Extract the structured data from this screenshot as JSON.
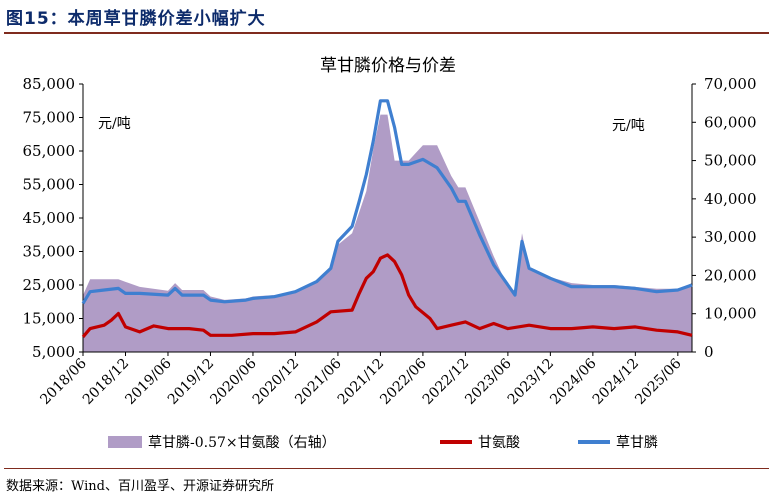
{
  "header": {
    "figure_title": "图15：本周草甘膦价差小幅扩大"
  },
  "footer": {
    "source": "数据来源：Wind、百川盈孚、开源证券研究所"
  },
  "colors": {
    "spread_fill": "#b09cc6",
    "glycine": "#c00000",
    "glyphosate": "#3f7fd0",
    "rule": "#7f2b1e",
    "title": "#0d2b6b"
  },
  "chart_data": {
    "type": "line",
    "title": "草甘膦价格与价差",
    "left_axis_unit": "元/吨",
    "right_axis_unit": "元/吨",
    "left_ylim": [
      5000,
      85000
    ],
    "right_ylim": [
      0,
      70000
    ],
    "left_ticks": [
      "85,000",
      "75,000",
      "65,000",
      "55,000",
      "45,000",
      "35,000",
      "25,000",
      "15,000",
      "5,000"
    ],
    "right_ticks": [
      "70,000",
      "60,000",
      "50,000",
      "40,000",
      "30,000",
      "20,000",
      "10,000",
      "0"
    ],
    "x_ticks": [
      "2018/06",
      "2018/12",
      "2019/06",
      "2019/12",
      "2020/06",
      "2020/12",
      "2021/06",
      "2021/12",
      "2022/06",
      "2022/12",
      "2023/06",
      "2023/12",
      "2024/06",
      "2024/12",
      "2025/06"
    ],
    "x_range": [
      "2018/06",
      "2025/08"
    ],
    "grid": false,
    "legend_position": "bottom",
    "series": [
      {
        "name": "草甘膦-0.57×甘氨酸（右轴）",
        "axis": "right",
        "kind": "area",
        "points": [
          [
            "2018/06",
            14800
          ],
          [
            "2018/07",
            19000
          ],
          [
            "2018/11",
            19000
          ],
          [
            "2018/12",
            18300
          ],
          [
            "2019/02",
            17000
          ],
          [
            "2019/06",
            16000
          ],
          [
            "2019/07",
            18000
          ],
          [
            "2019/08",
            16200
          ],
          [
            "2019/11",
            16200
          ],
          [
            "2019/12",
            14500
          ],
          [
            "2020/02",
            13600
          ],
          [
            "2020/05",
            14000
          ],
          [
            "2020/06",
            14500
          ],
          [
            "2020/10",
            15000
          ],
          [
            "2020/12",
            16000
          ],
          [
            "2021/03",
            18200
          ],
          [
            "2021/05",
            22000
          ],
          [
            "2021/06",
            28000
          ],
          [
            "2021/08",
            31000
          ],
          [
            "2021/10",
            42000
          ],
          [
            "2021/11",
            53000
          ],
          [
            "2021/12",
            62000
          ],
          [
            "2022/01",
            62000
          ],
          [
            "2022/02",
            50000
          ],
          [
            "2022/04",
            50000
          ],
          [
            "2022/06",
            54000
          ],
          [
            "2022/08",
            54000
          ],
          [
            "2022/10",
            46000
          ],
          [
            "2022/11",
            43000
          ],
          [
            "2022/12",
            43000
          ],
          [
            "2023/02",
            34000
          ],
          [
            "2023/04",
            25000
          ],
          [
            "2023/06",
            17000
          ],
          [
            "2023/07",
            16000
          ],
          [
            "2023/08",
            31000
          ],
          [
            "2023/09",
            22000
          ],
          [
            "2023/12",
            19500
          ],
          [
            "2024/03",
            18000
          ],
          [
            "2024/06",
            17500
          ],
          [
            "2024/09",
            17500
          ],
          [
            "2024/12",
            17000
          ],
          [
            "2025/03",
            16500
          ],
          [
            "2025/06",
            16500
          ],
          [
            "2025/08",
            18000
          ]
        ]
      },
      {
        "name": "甘氨酸",
        "axis": "left",
        "kind": "line",
        "points": [
          [
            "2018/06",
            9500
          ],
          [
            "2018/07",
            12000
          ],
          [
            "2018/09",
            13000
          ],
          [
            "2018/10",
            14500
          ],
          [
            "2018/11",
            16500
          ],
          [
            "2018/12",
            12500
          ],
          [
            "2019/02",
            11000
          ],
          [
            "2019/04",
            12800
          ],
          [
            "2019/06",
            12000
          ],
          [
            "2019/09",
            12000
          ],
          [
            "2019/11",
            11500
          ],
          [
            "2019/12",
            10000
          ],
          [
            "2020/03",
            10000
          ],
          [
            "2020/06",
            10500
          ],
          [
            "2020/09",
            10500
          ],
          [
            "2020/12",
            11000
          ],
          [
            "2021/03",
            14000
          ],
          [
            "2021/05",
            17000
          ],
          [
            "2021/08",
            17500
          ],
          [
            "2021/09",
            22500
          ],
          [
            "2021/10",
            27000
          ],
          [
            "2021/11",
            29000
          ],
          [
            "2021/12",
            33000
          ],
          [
            "2022/01",
            34000
          ],
          [
            "2022/02",
            32000
          ],
          [
            "2022/03",
            28000
          ],
          [
            "2022/04",
            22000
          ],
          [
            "2022/05",
            18500
          ],
          [
            "2022/07",
            15000
          ],
          [
            "2022/08",
            12000
          ],
          [
            "2022/10",
            13000
          ],
          [
            "2022/12",
            14000
          ],
          [
            "2023/02",
            12000
          ],
          [
            "2023/04",
            13500
          ],
          [
            "2023/06",
            12000
          ],
          [
            "2023/09",
            13000
          ],
          [
            "2023/12",
            12000
          ],
          [
            "2024/03",
            12000
          ],
          [
            "2024/06",
            12500
          ],
          [
            "2024/09",
            12000
          ],
          [
            "2024/12",
            12500
          ],
          [
            "2025/03",
            11500
          ],
          [
            "2025/06",
            11000
          ],
          [
            "2025/08",
            10000
          ]
        ]
      },
      {
        "name": "草甘膦",
        "axis": "left",
        "kind": "line",
        "points": [
          [
            "2018/06",
            19500
          ],
          [
            "2018/07",
            23000
          ],
          [
            "2018/09",
            23500
          ],
          [
            "2018/11",
            24000
          ],
          [
            "2018/12",
            22500
          ],
          [
            "2019/02",
            22500
          ],
          [
            "2019/06",
            22000
          ],
          [
            "2019/07",
            24000
          ],
          [
            "2019/08",
            22000
          ],
          [
            "2019/11",
            22000
          ],
          [
            "2019/12",
            20500
          ],
          [
            "2020/02",
            20000
          ],
          [
            "2020/05",
            20500
          ],
          [
            "2020/06",
            21000
          ],
          [
            "2020/09",
            21500
          ],
          [
            "2020/12",
            23000
          ],
          [
            "2021/03",
            26000
          ],
          [
            "2021/05",
            30000
          ],
          [
            "2021/06",
            38000
          ],
          [
            "2021/08",
            42500
          ],
          [
            "2021/09",
            50000
          ],
          [
            "2021/10",
            58000
          ],
          [
            "2021/11",
            68000
          ],
          [
            "2021/12",
            80000
          ],
          [
            "2022/01",
            80000
          ],
          [
            "2022/02",
            72000
          ],
          [
            "2022/03",
            61000
          ],
          [
            "2022/04",
            61000
          ],
          [
            "2022/06",
            62500
          ],
          [
            "2022/08",
            60000
          ],
          [
            "2022/10",
            54000
          ],
          [
            "2022/11",
            50000
          ],
          [
            "2022/12",
            50000
          ],
          [
            "2023/02",
            40000
          ],
          [
            "2023/04",
            31000
          ],
          [
            "2023/06",
            25000
          ],
          [
            "2023/07",
            22000
          ],
          [
            "2023/08",
            38000
          ],
          [
            "2023/09",
            30000
          ],
          [
            "2023/12",
            27000
          ],
          [
            "2024/03",
            24500
          ],
          [
            "2024/06",
            24500
          ],
          [
            "2024/09",
            24500
          ],
          [
            "2024/12",
            24000
          ],
          [
            "2025/03",
            23000
          ],
          [
            "2025/06",
            23500
          ],
          [
            "2025/08",
            25000
          ]
        ]
      }
    ]
  }
}
